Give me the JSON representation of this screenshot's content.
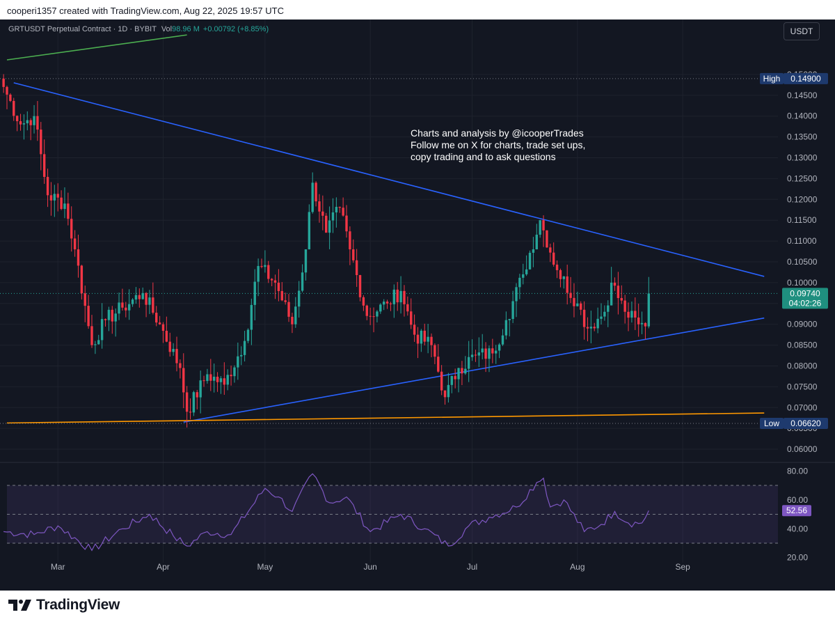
{
  "header": {
    "attribution": "cooperi1357 created with TradingView.com, Aug 22, 2025 19:57 UTC"
  },
  "symbol": {
    "name": "GRTUSDT Perpetual Contract · 1D · BYBIT",
    "vol_label": "Vol",
    "vol_value": "98.96 M",
    "change": "+0.00792 (+8.85%)"
  },
  "currency_button": "USDT",
  "annotation": [
    "Charts and analysis by @icooperTrades",
    "Follow me on X for charts, trade set ups,",
    "copy trading and to ask questions"
  ],
  "footer": {
    "logo_text": "TradingView"
  },
  "colors": {
    "background": "#131722",
    "up": "#26a69a",
    "down": "#f23645",
    "trendline": "#2962ff",
    "support": "#ff9800",
    "green_line": "#4caf50",
    "rsi": "#7e57c2"
  },
  "chart_data": [
    {
      "type": "candlestick",
      "title": "GRTUSDT Perpetual Contract · 1D · BYBIT",
      "y_tick_labels": [
        "0.06000",
        "0.06500",
        "0.07000",
        "0.07500",
        "0.08000",
        "0.08500",
        "0.09000",
        "0.09500",
        "0.10000",
        "0.10500",
        "0.11000",
        "0.11500",
        "0.12000",
        "0.12500",
        "0.13000",
        "0.13500",
        "0.14000",
        "0.14500",
        "0.15000"
      ],
      "x_tick_labels": [
        "Mar",
        "Apr",
        "May",
        "Jun",
        "Jul",
        "Aug",
        "Sep"
      ],
      "ylim": [
        0.0575,
        0.1535
      ],
      "high_label": "High",
      "high_value": "0.14900",
      "low_label": "Low",
      "low_value": "0.06620",
      "last_price": "0.09740",
      "countdown": "04:02:26",
      "anchors": [
        {
          "date": "2025-02-13",
          "close": 0.147
        },
        {
          "date": "2025-02-18",
          "close": 0.138
        },
        {
          "date": "2025-02-22",
          "close": 0.14
        },
        {
          "date": "2025-02-26",
          "close": 0.121
        },
        {
          "date": "2025-03-03",
          "close": 0.119
        },
        {
          "date": "2025-03-06",
          "close": 0.108
        },
        {
          "date": "2025-03-11",
          "close": 0.085
        },
        {
          "date": "2025-03-15",
          "close": 0.091
        },
        {
          "date": "2025-03-20",
          "close": 0.094
        },
        {
          "date": "2025-03-26",
          "close": 0.0975
        },
        {
          "date": "2025-03-31",
          "close": 0.09
        },
        {
          "date": "2025-04-06",
          "close": 0.0795
        },
        {
          "date": "2025-04-08",
          "close": 0.069
        },
        {
          "date": "2025-04-14",
          "close": 0.078
        },
        {
          "date": "2025-04-19",
          "close": 0.0755
        },
        {
          "date": "2025-04-25",
          "close": 0.086
        },
        {
          "date": "2025-04-29",
          "close": 0.104
        },
        {
          "date": "2025-05-04",
          "close": 0.1
        },
        {
          "date": "2025-05-09",
          "close": 0.09
        },
        {
          "date": "2025-05-13",
          "close": 0.108
        },
        {
          "date": "2025-05-15",
          "close": 0.124
        },
        {
          "date": "2025-05-19",
          "close": 0.112
        },
        {
          "date": "2025-05-23",
          "close": 0.118
        },
        {
          "date": "2025-05-26",
          "close": 0.108
        },
        {
          "date": "2025-05-31",
          "close": 0.092
        },
        {
          "date": "2025-06-06",
          "close": 0.095
        },
        {
          "date": "2025-06-10",
          "close": 0.098
        },
        {
          "date": "2025-06-14",
          "close": 0.0875
        },
        {
          "date": "2025-06-19",
          "close": 0.085
        },
        {
          "date": "2025-06-23",
          "close": 0.0725
        },
        {
          "date": "2025-06-27",
          "close": 0.0795
        },
        {
          "date": "2025-07-02",
          "close": 0.0825
        },
        {
          "date": "2025-07-07",
          "close": 0.083
        },
        {
          "date": "2025-07-11",
          "close": 0.091
        },
        {
          "date": "2025-07-16",
          "close": 0.102
        },
        {
          "date": "2025-07-21",
          "close": 0.115
        },
        {
          "date": "2025-07-26",
          "close": 0.103
        },
        {
          "date": "2025-08-01",
          "close": 0.095
        },
        {
          "date": "2025-08-04",
          "close": 0.089
        },
        {
          "date": "2025-08-09",
          "close": 0.093
        },
        {
          "date": "2025-08-11",
          "close": 0.1
        },
        {
          "date": "2025-08-15",
          "close": 0.093
        },
        {
          "date": "2025-08-19",
          "close": 0.09
        },
        {
          "date": "2025-08-21",
          "close": 0.0895
        },
        {
          "date": "2025-08-22",
          "close": 0.0974
        }
      ],
      "lines": [
        {
          "name": "descending-resistance",
          "from": {
            "date": "2025-02-16",
            "value": 0.148
          },
          "to": {
            "date": "2025-09-25",
            "value": 0.1015
          }
        },
        {
          "name": "ascending-support",
          "from": {
            "date": "2025-04-07",
            "value": 0.0665
          },
          "to": {
            "date": "2025-09-25",
            "value": 0.0915
          }
        },
        {
          "name": "horizontal-support",
          "from": {
            "date": "2025-02-14",
            "value": 0.0663
          },
          "to": {
            "date": "2025-09-25",
            "value": 0.0687
          }
        },
        {
          "name": "green-trendline",
          "from": {
            "date": "2025-02-14",
            "value": 0.1535
          },
          "to": {
            "date": "2025-04-08",
            "value": 0.1595
          }
        }
      ]
    },
    {
      "type": "line",
      "title": "RSI",
      "y_tick_labels": [
        "20.00",
        "40.00",
        "60.00",
        "80.00"
      ],
      "ylim": [
        16.5,
        84
      ],
      "band": [
        30,
        70
      ],
      "mid": 50,
      "last_value": "52.56",
      "anchors": [
        {
          "date": "2025-02-13",
          "value": 38
        },
        {
          "date": "2025-02-22",
          "value": 36
        },
        {
          "date": "2025-03-01",
          "value": 42
        },
        {
          "date": "2025-03-11",
          "value": 25
        },
        {
          "date": "2025-03-20",
          "value": 40
        },
        {
          "date": "2025-03-28",
          "value": 50
        },
        {
          "date": "2025-04-04",
          "value": 35
        },
        {
          "date": "2025-04-08",
          "value": 28
        },
        {
          "date": "2025-04-14",
          "value": 38
        },
        {
          "date": "2025-04-21",
          "value": 36
        },
        {
          "date": "2025-05-01",
          "value": 68
        },
        {
          "date": "2025-05-05",
          "value": 62
        },
        {
          "date": "2025-05-09",
          "value": 52
        },
        {
          "date": "2025-05-15",
          "value": 78
        },
        {
          "date": "2025-05-20",
          "value": 58
        },
        {
          "date": "2025-05-25",
          "value": 62
        },
        {
          "date": "2025-06-01",
          "value": 38
        },
        {
          "date": "2025-06-10",
          "value": 50
        },
        {
          "date": "2025-06-17",
          "value": 40
        },
        {
          "date": "2025-06-24",
          "value": 28
        },
        {
          "date": "2025-06-30",
          "value": 42
        },
        {
          "date": "2025-07-06",
          "value": 48
        },
        {
          "date": "2025-07-14",
          "value": 55
        },
        {
          "date": "2025-07-20",
          "value": 72
        },
        {
          "date": "2025-07-22",
          "value": 75
        },
        {
          "date": "2025-07-24",
          "value": 55
        },
        {
          "date": "2025-07-28",
          "value": 60
        },
        {
          "date": "2025-08-03",
          "value": 38
        },
        {
          "date": "2025-08-08",
          "value": 43
        },
        {
          "date": "2025-08-12",
          "value": 52
        },
        {
          "date": "2025-08-16",
          "value": 44
        },
        {
          "date": "2025-08-20",
          "value": 44
        },
        {
          "date": "2025-08-22",
          "value": 52.5
        }
      ]
    }
  ]
}
